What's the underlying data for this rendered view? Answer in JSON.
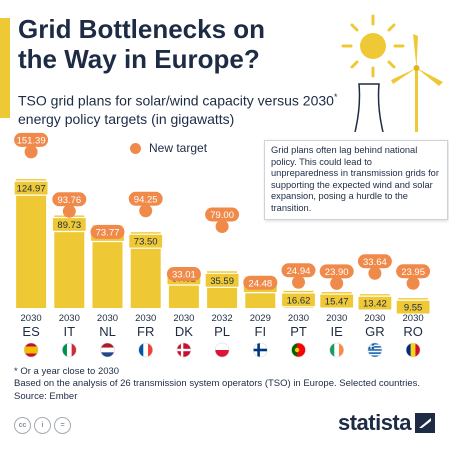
{
  "header": {
    "title": "Grid Bottlenecks on the Way in Europe?",
    "subtitle_a": "TSO grid plans for solar/wind capacity versus 2030",
    "subtitle_sup": "*",
    "subtitle_b": " energy policy targets (in gigawatts)"
  },
  "note": "Grid plans often lag behind national policy. This could lead to unpreparedness in transmission grids for supporting the expected wind and solar expansion, posing a hurdle to the transition.",
  "legend": {
    "label": "New target"
  },
  "footer": {
    "footnote": "* Or a year close to 2030",
    "source_note": "Based on the analysis of 26 transmission system operators (TSO) in Europe. Selected countries.",
    "source": "Source: Ember"
  },
  "brand": {
    "name": "statista"
  },
  "colors": {
    "bar": "#efc935",
    "new_target": "#f08a4b",
    "text": "#1d2b44",
    "background": "#ffffff"
  },
  "chart_data": {
    "type": "bar",
    "categories": [
      "ES",
      "IT",
      "NL",
      "FR",
      "DK",
      "PL",
      "FI",
      "PT",
      "IE",
      "GR",
      "RO"
    ],
    "years": [
      "2030",
      "2030",
      "2030",
      "2030",
      "2030",
      "2032",
      "2029",
      "2030",
      "2030",
      "2030",
      "2030"
    ],
    "flags": [
      "spain-flag-icon",
      "italy-flag-icon",
      "netherlands-flag-icon",
      "france-flag-icon",
      "denmark-flag-icon",
      "poland-flag-icon",
      "finland-flag-icon",
      "portugal-flag-icon",
      "ireland-flag-icon",
      "greece-flag-icon",
      "romania-flag-icon"
    ],
    "series": [
      {
        "name": "",
        "kind": "bar",
        "values": [
          124.97,
          89.73,
          80.02,
          73.5,
          37.82,
          35.59,
          30.4,
          16.62,
          15.47,
          13.42,
          9.55
        ]
      },
      {
        "name": "New target",
        "kind": "dot",
        "values": [
          151.39,
          93.76,
          73.77,
          94.25,
          33.01,
          79.0,
          24.48,
          24.94,
          23.9,
          33.64,
          23.95
        ]
      }
    ],
    "ylim": [
      0,
      160
    ],
    "grid": false,
    "legend_position": "top-left"
  }
}
